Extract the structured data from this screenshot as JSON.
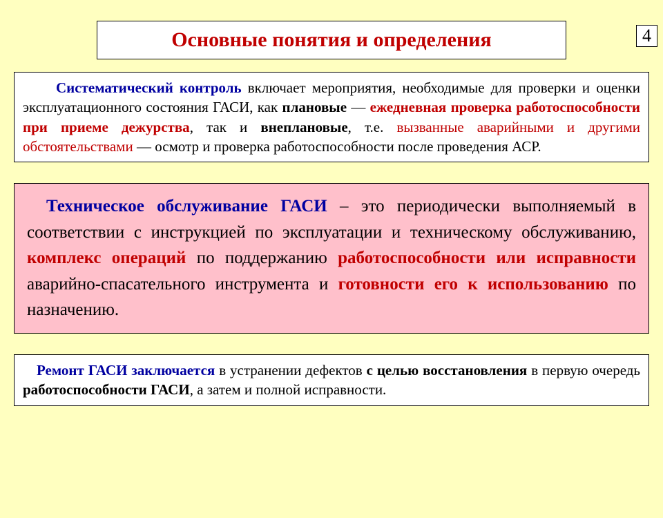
{
  "pageNumber": "4",
  "title": "Основные понятия и определения",
  "colors": {
    "background": "#ffffc0",
    "boxWhite": "#ffffff",
    "boxPink": "#ffc0cb",
    "border": "#000000",
    "textRed": "#c00000",
    "textBlue": "#0000a0",
    "textBlack": "#000000"
  },
  "box1": {
    "t1": "Систематический контроль",
    "t2": " включает мероприятия, необходимые для проверки и оценки эксплуатационного состояния ГАСИ, как ",
    "t3": "плановые",
    "t4": " — ",
    "t5": "ежедневная проверка работоспособности при приеме дежурства",
    "t6": ", так и ",
    "t7": "внеплановые",
    "t8": ", т.е. ",
    "t9": "вызванные аварийными и другими обстоятельствами",
    "t10": " — осмотр и проверка работоспособности после проведения АСР."
  },
  "box2": {
    "t1": "Техническое обслуживание ГАСИ",
    "t2": " – это периодически выполняемый в соответствии с инструкцией по эксплуатации и техническому обслуживанию, ",
    "t3": "комплекс операций",
    "t4": " по поддержанию ",
    "t5": "работоспособности или исправности",
    "t6": " аварийно-спасательного инструмента и ",
    "t7": "готовности его к использованию",
    "t8": " по назначению."
  },
  "box3": {
    "t1": "Ремонт ГАСИ заключается",
    "t2": " в устранении дефектов ",
    "t3": "с целью восстановления",
    "t4": " в первую очередь ",
    "t5": "работоспособности ГАСИ",
    "t6": ", а затем и полной исправности."
  }
}
